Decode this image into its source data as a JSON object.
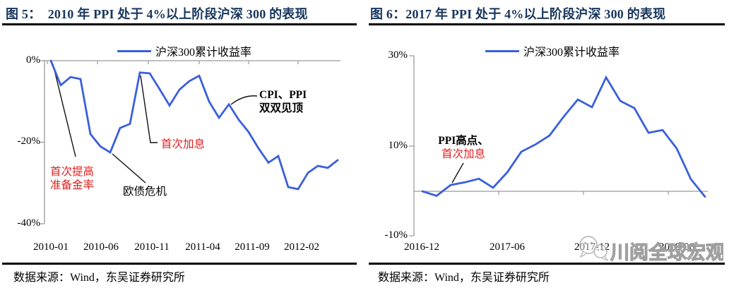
{
  "watermark": {
    "icon": "wechat-logo-icon",
    "text": "川阅全球宏观"
  },
  "chart_data": [
    {
      "type": "line",
      "title": "图 5：  2010 年 PPI 处于 4%以上阶段沪深 300 的表现",
      "legend": "沪深300累计收益率",
      "line_color": "#3A5FDC",
      "axis_color": "#9A9A9A",
      "title_color": "#17365D",
      "ylim": [
        -40,
        0
      ],
      "y_tick_labels": [
        "0%",
        "-20%",
        "-40%"
      ],
      "y_tick_values": [
        0,
        -20,
        -40
      ],
      "x_tick_labels": [
        "2010-01",
        "2010-06",
        "2010-11",
        "2011-04",
        "2011-09",
        "2012-02"
      ],
      "x": [
        "2010-01",
        "2010-02",
        "2010-03",
        "2010-04",
        "2010-05",
        "2010-06",
        "2010-07",
        "2010-08",
        "2010-09",
        "2010-10",
        "2010-11",
        "2010-12",
        "2011-01",
        "2011-02",
        "2011-03",
        "2011-04",
        "2011-05",
        "2011-06",
        "2011-07",
        "2011-08",
        "2011-09",
        "2011-10",
        "2011-11",
        "2011-12",
        "2012-01",
        "2012-02",
        "2012-03",
        "2012-04",
        "2012-05",
        "2012-06"
      ],
      "values": [
        0,
        -6,
        -4,
        -4.5,
        -18,
        -21,
        -22.5,
        -16.5,
        -15.5,
        -2.9,
        -3.1,
        -7,
        -11,
        -7.1,
        -5,
        -3.7,
        -10,
        -14,
        -10.7,
        -14.5,
        -17.5,
        -21.5,
        -25,
        -23.4,
        -31,
        -31.5,
        -27.5,
        -25.8,
        -26.3,
        -24.4
      ],
      "annotations": [
        {
          "id": "first-rrr-hike",
          "lines": [
            {
              "text": "首次提高",
              "color": "#E02020"
            },
            {
              "text": "准备金率",
              "color": "#E02020"
            }
          ]
        },
        {
          "id": "european-debt-crisis",
          "lines": [
            {
              "text": "欧债危机",
              "color": "#000000"
            }
          ]
        },
        {
          "id": "first-rate-hike",
          "lines": [
            {
              "text": "首次加息",
              "color": "#E02020"
            }
          ]
        },
        {
          "id": "cpi-ppi-peak",
          "lines": [
            {
              "text": "CPI、PPI",
              "color": "#000000"
            },
            {
              "text": "双双见顶",
              "color": "#000000"
            }
          ]
        }
      ],
      "source": "数据来源：Wind，东吴证券研究所"
    },
    {
      "type": "line",
      "title": "图 6：2017 年 PPI 处于 4%以上阶段沪深 300 的表现",
      "legend": "沪深300累计收益率",
      "line_color": "#3A5FDC",
      "axis_color": "#9A9A9A",
      "title_color": "#17365D",
      "ylim": [
        -10,
        30
      ],
      "y_tick_labels": [
        "30%",
        "10%",
        "-10%"
      ],
      "y_tick_values": [
        30,
        10,
        -10
      ],
      "x_tick_labels": [
        "2016-12",
        "2017-06",
        "2017-12",
        "2018-06"
      ],
      "x": [
        "2016-12",
        "2017-01",
        "2017-02",
        "2017-03",
        "2017-04",
        "2017-05",
        "2017-06",
        "2017-07",
        "2017-08",
        "2017-09",
        "2017-10",
        "2017-11",
        "2017-12",
        "2018-01",
        "2018-02",
        "2018-03",
        "2018-04",
        "2018-05",
        "2018-06",
        "2018-07",
        "2018-08"
      ],
      "values": [
        0,
        -1,
        1.4,
        2,
        2.8,
        0.8,
        4.2,
        8.8,
        10.4,
        12.4,
        16.6,
        20.4,
        18.7,
        25.3,
        20.1,
        18.5,
        13,
        13.6,
        9.5,
        2.7,
        -1.2
      ],
      "annotations": [
        {
          "id": "ppi-peak-first-rate-hike",
          "lines": [
            {
              "text": "PPI高点、",
              "color": "#000000"
            },
            {
              "text": "首次加息",
              "color": "#E02020"
            }
          ]
        }
      ],
      "source": "数据来源：Wind，东吴证券研究所"
    }
  ]
}
